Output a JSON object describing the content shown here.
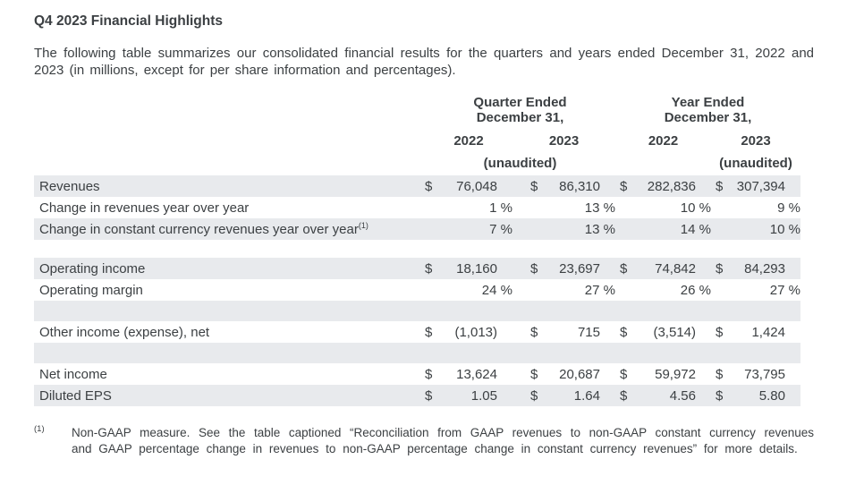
{
  "page": {
    "title": "Q4 2023 Financial Highlights",
    "intro": "The following table summarizes our consolidated financial results for the quarters and years ended December 31, 2022 and 2023 (in millions, except for per share information and percentages)."
  },
  "table": {
    "currency_symbol": "$",
    "column_groups": [
      {
        "title_line1": "Quarter Ended",
        "title_line2": "December 31,",
        "years": [
          "2022",
          "2023"
        ],
        "unaudited_label": "(unaudited)"
      },
      {
        "title_line1": "Year Ended",
        "title_line2": "December 31,",
        "years": [
          "2022",
          "2023"
        ],
        "unaudited_label": "(unaudited)"
      }
    ],
    "rows": [
      {
        "label": "Revenues",
        "type": "currency",
        "shaded": true,
        "values": [
          "76,048",
          "86,310",
          "282,836",
          "307,394"
        ]
      },
      {
        "label": "Change in revenues year over year",
        "type": "percent",
        "shaded": false,
        "values": [
          "1 %",
          "13 %",
          "10 %",
          "9 %"
        ]
      },
      {
        "label": "Change in constant currency revenues year over year",
        "label_superscript": "(1)",
        "type": "percent",
        "shaded": true,
        "values": [
          "7 %",
          "13 %",
          "14 %",
          "10 %"
        ]
      },
      {
        "type": "spacer",
        "shaded": false
      },
      {
        "label": "Operating income",
        "type": "currency",
        "shaded": true,
        "values": [
          "18,160",
          "23,697",
          "74,842",
          "84,293"
        ]
      },
      {
        "label": "Operating margin",
        "type": "percent",
        "shaded": false,
        "values": [
          "24 %",
          "27 %",
          "26 %",
          "27 %"
        ]
      },
      {
        "type": "spacer",
        "shaded": true
      },
      {
        "label": "Other income (expense), net",
        "type": "currency",
        "shaded": false,
        "values": [
          "(1,013)",
          "715",
          "(3,514)",
          "1,424"
        ]
      },
      {
        "type": "spacer",
        "shaded": true
      },
      {
        "label": "Net income",
        "type": "currency",
        "shaded": false,
        "values": [
          "13,624",
          "20,687",
          "59,972",
          "73,795"
        ]
      },
      {
        "label": "Diluted EPS",
        "type": "currency",
        "shaded": true,
        "values": [
          "1.05",
          "1.64",
          "4.56",
          "5.80"
        ]
      }
    ]
  },
  "footnote": {
    "marker": "(1)",
    "text": "Non-GAAP measure. See the table captioned “Reconciliation from GAAP revenues to non-GAAP constant currency revenues and GAAP percentage change in revenues to non-GAAP percentage change in constant currency revenues” for more details."
  },
  "colors": {
    "row_shade": "#e8eaed",
    "text": "#3c4043",
    "background": "#ffffff"
  }
}
